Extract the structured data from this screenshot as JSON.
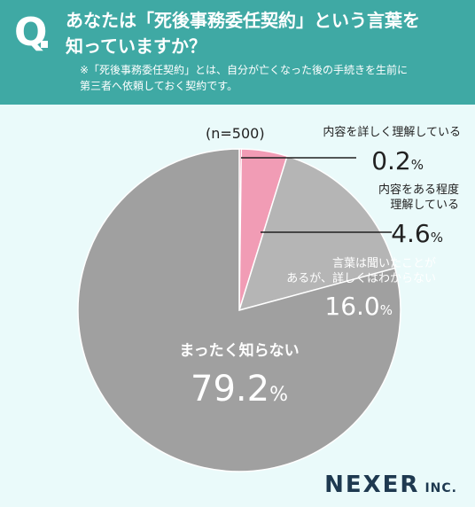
{
  "question": {
    "mark": "Q",
    "line1": "あなたは「死後事務委任契約」という言葉を",
    "line2": "知っていますか？",
    "note_line1": "※「死後事務委任契約」とは、自分が亡くなった後の手続きを生前に",
    "note_line2": "第三者へ依頼しておく契約です。"
  },
  "sample_size": "(n=500)",
  "chart_data": {
    "type": "pie",
    "unit": "%",
    "slices": [
      {
        "label_lines": [
          "内容を詳しく理解している"
        ],
        "value": 0.2,
        "value_text": "0.2",
        "color": "#e0507a"
      },
      {
        "label_lines": [
          "内容をある程度",
          "理解している"
        ],
        "value": 4.6,
        "value_text": "4.6",
        "color": "#f19cb5"
      },
      {
        "label_lines": [
          "言葉は聞いたことが",
          "あるが、詳しくはわからない"
        ],
        "value": 16.0,
        "value_text": "16.0",
        "color": "#b5b5b5"
      },
      {
        "label_lines": [
          "まったく知らない"
        ],
        "value": 79.2,
        "value_text": "79.2",
        "color": "#a0a0a0"
      }
    ]
  },
  "logo": {
    "main": "NEXER",
    "sub": "INC."
  },
  "colors": {
    "header": "#3fa9a4",
    "background": "#eafafa",
    "text": "#222222",
    "leader": "#1f1f1f"
  }
}
